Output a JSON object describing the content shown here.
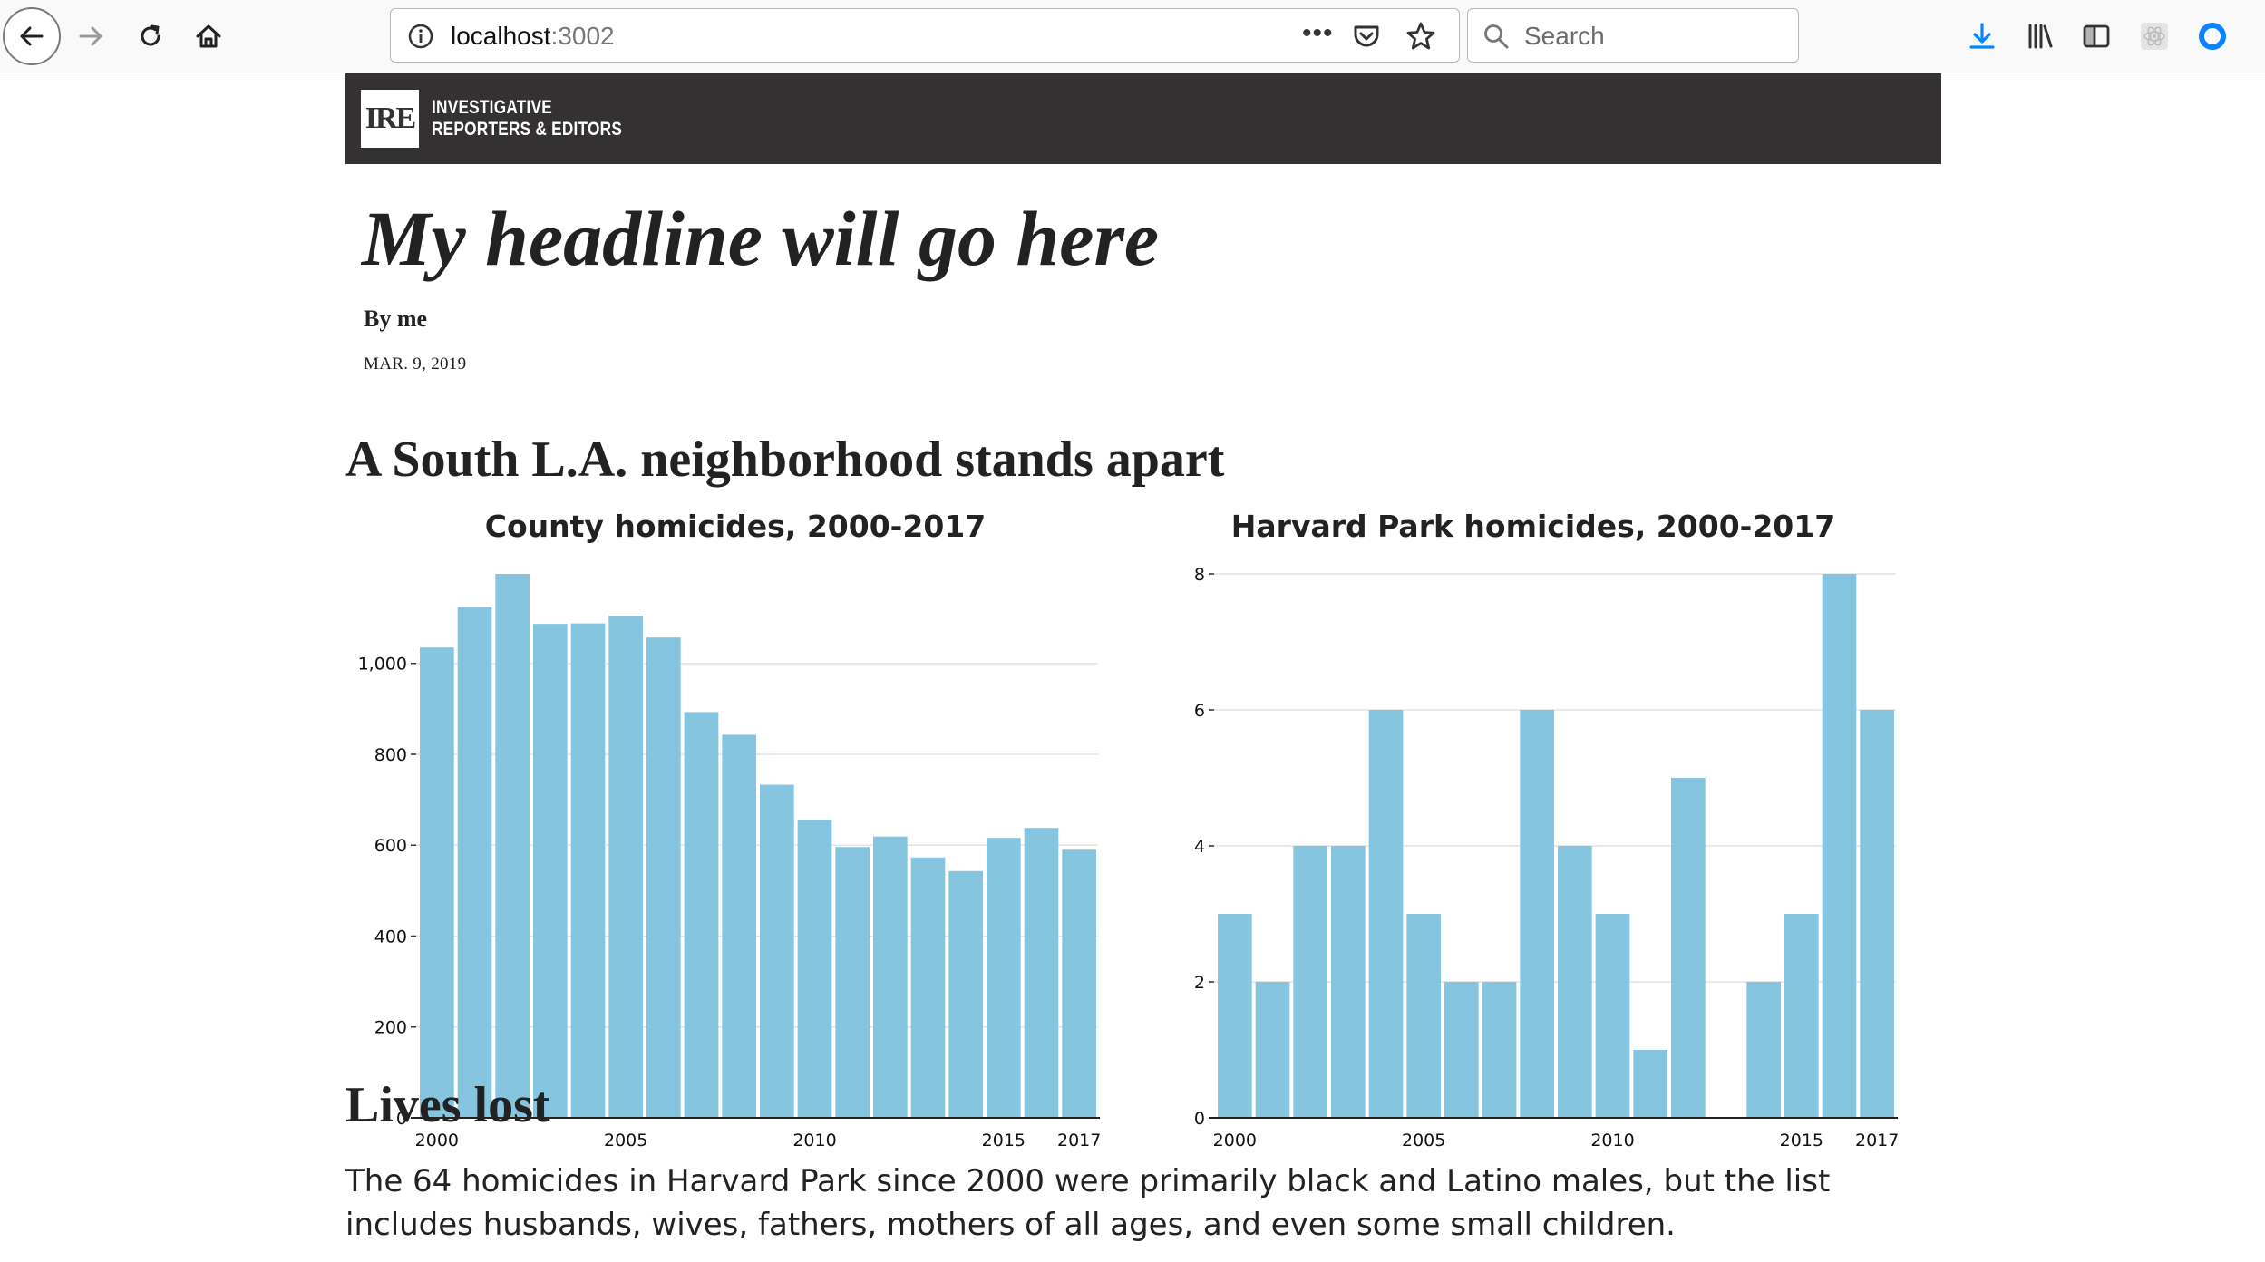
{
  "browser": {
    "url": "localhost",
    "url_port": ":3002",
    "page_actions": "•••",
    "search_placeholder": "Search"
  },
  "banner": {
    "logo_text": "IRE",
    "org_line1": "INVESTIGATIVE",
    "org_line2": "REPORTERS & EDITORS"
  },
  "article": {
    "headline": "My headline will go here",
    "byline": "By me",
    "date": "MAR. 9, 2019",
    "section_heading": "A South L.A. neighborhood stands apart",
    "subheading": "Lives lost",
    "body": "The 64 homicides in Harvard Park since 2000 were primarily black and Latino males, but the list includes husbands, wives, fathers, mothers of all ages, and even some small children."
  },
  "colors": {
    "bar": "#86c5df",
    "banner": "#333131",
    "grid": "#e4e4e4"
  },
  "chart_data": [
    {
      "type": "bar",
      "title": "County homicides, 2000-2017",
      "categories": [
        "2000",
        "2001",
        "2002",
        "2003",
        "2004",
        "2005",
        "2006",
        "2007",
        "2008",
        "2009",
        "2010",
        "2011",
        "2012",
        "2013",
        "2014",
        "2015",
        "2016",
        "2017"
      ],
      "values": [
        1035,
        1125,
        1197,
        1087,
        1088,
        1105,
        1057,
        893,
        843,
        733,
        656,
        596,
        619,
        573,
        543,
        616,
        638,
        590
      ],
      "x_tick_labels": [
        "2000",
        "2005",
        "2010",
        "2015",
        "2017"
      ],
      "y_ticks": [
        0,
        200,
        400,
        600,
        800,
        1000
      ],
      "y_tick_labels": [
        "0",
        "200",
        "400",
        "600",
        "800",
        "1,000"
      ],
      "ylim": [
        0,
        1197
      ],
      "grid": true,
      "xlabel": "",
      "ylabel": ""
    },
    {
      "type": "bar",
      "title": "Harvard Park homicides, 2000-2017",
      "categories": [
        "2000",
        "2001",
        "2002",
        "2003",
        "2004",
        "2005",
        "2006",
        "2007",
        "2008",
        "2009",
        "2010",
        "2011",
        "2012",
        "2013",
        "2014",
        "2015",
        "2016",
        "2017"
      ],
      "values": [
        3,
        2,
        4,
        4,
        6,
        3,
        2,
        2,
        6,
        4,
        3,
        1,
        5,
        0,
        2,
        3,
        8,
        6
      ],
      "x_tick_labels": [
        "2000",
        "2005",
        "2010",
        "2015",
        "2017"
      ],
      "y_ticks": [
        0,
        2,
        4,
        6,
        8
      ],
      "y_tick_labels": [
        "0",
        "2",
        "4",
        "6",
        "8"
      ],
      "ylim": [
        0,
        8
      ],
      "grid": true,
      "xlabel": "",
      "ylabel": ""
    }
  ]
}
